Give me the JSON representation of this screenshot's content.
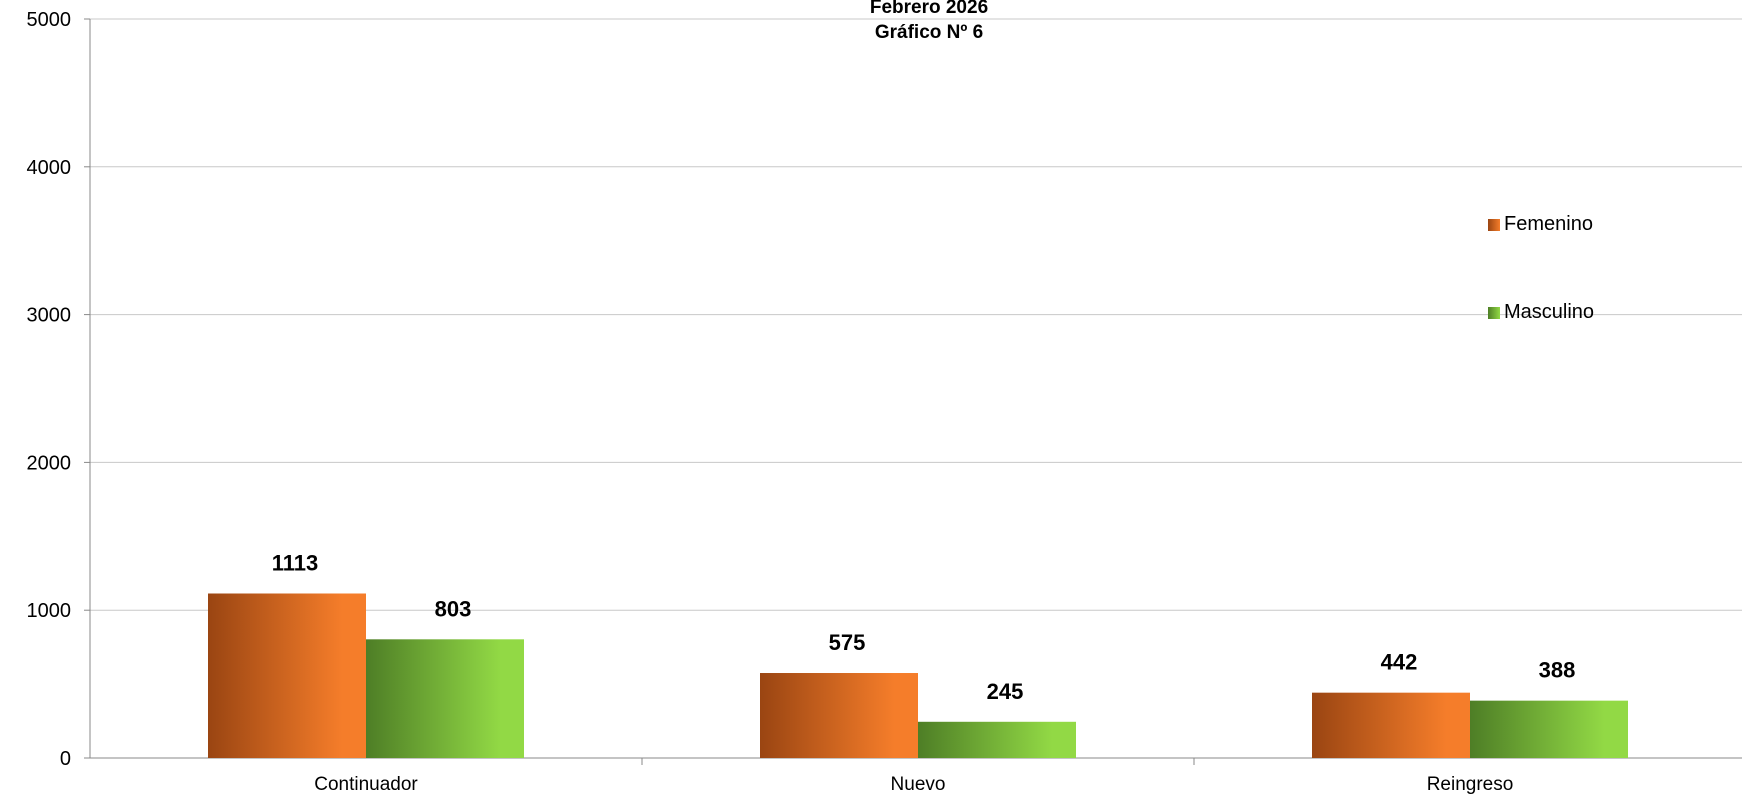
{
  "chart_data": {
    "type": "bar",
    "title_lines": [
      "Febrero 2026",
      "Gráfico Nº 6"
    ],
    "categories": [
      "Continuador",
      "Nuevo",
      "Reingreso"
    ],
    "series": [
      {
        "name": "Femenino",
        "values": [
          1113,
          575,
          442
        ],
        "color_dark": "#9a4512",
        "color_light": "#f57d2a"
      },
      {
        "name": "Masculino",
        "values": [
          803,
          245,
          388
        ],
        "color_dark": "#4e7e26",
        "color_light": "#92d945"
      }
    ],
    "ylim": [
      0,
      5000
    ],
    "yticks": [
      0,
      1000,
      2000,
      3000,
      4000,
      5000
    ],
    "grid": true,
    "legend_position": "right",
    "data_labels": true
  }
}
